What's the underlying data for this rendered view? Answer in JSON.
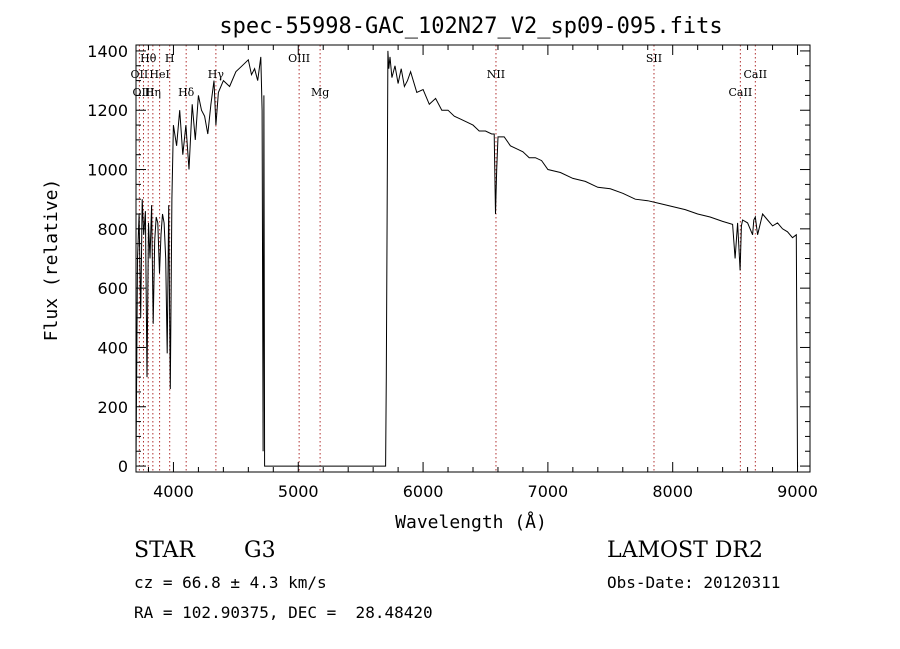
{
  "chart_data": {
    "type": "line",
    "title": "spec-55998-GAC_102N27_V2_sp09-095.fits",
    "xlabel": "Wavelength (Å)",
    "ylabel": "Flux (relative)",
    "xlim": [
      3700,
      9100
    ],
    "ylim": [
      -20,
      1420
    ],
    "xticks": [
      4000,
      5000,
      6000,
      7000,
      8000,
      9000
    ],
    "xtick_labels": [
      "4000",
      "5000",
      "6000",
      "7000",
      "8000",
      "9000"
    ],
    "yticks": [
      0,
      200,
      400,
      600,
      800,
      1000,
      1200,
      1400
    ],
    "ytick_labels": [
      "0",
      "200",
      "400",
      "600",
      "800",
      "1000",
      "1200",
      "1400"
    ],
    "grid": false,
    "legend": "none",
    "line_color": "#000000",
    "marker_color": "#b03030",
    "lines": [
      {
        "label": "Hθ",
        "x": 3798,
        "row": 0
      },
      {
        "label": "H",
        "x": 3970,
        "row": 0
      },
      {
        "label": "OII",
        "x": 3727,
        "row": 1
      },
      {
        "label": "HeI",
        "x": 3889,
        "row": 1
      },
      {
        "label": "Hγ",
        "x": 4340,
        "row": 1
      },
      {
        "label": "OIII",
        "x": 5007,
        "row": 0
      },
      {
        "label": "Mg",
        "x": 5175,
        "row": 2
      },
      {
        "label": "NII",
        "x": 6584,
        "row": 1
      },
      {
        "label": "SII",
        "x": 7850,
        "row": 0
      },
      {
        "label": "CaII",
        "x": 8542,
        "row": 2
      },
      {
        "label": "CaII",
        "x": 8662,
        "row": 1
      },
      {
        "label": "OIII",
        "x": 3760,
        "row": 2
      },
      {
        "label": "Hη",
        "x": 3835,
        "row": 2
      },
      {
        "label": "Hδ",
        "x": 4102,
        "row": 2
      }
    ],
    "spectrum": {
      "x": [
        3700,
        3712,
        3725,
        3738,
        3750,
        3762,
        3775,
        3788,
        3800,
        3812,
        3825,
        3838,
        3850,
        3862,
        3875,
        3888,
        3900,
        3912,
        3925,
        3938,
        3950,
        3962,
        3975,
        3988,
        4000,
        4025,
        4050,
        4075,
        4100,
        4125,
        4150,
        4175,
        4200,
        4225,
        4250,
        4275,
        4300,
        4325,
        4340,
        4360,
        4400,
        4450,
        4500,
        4550,
        4600,
        4625,
        4650,
        4675,
        4700,
        4710,
        4718,
        4725,
        4730,
        5700,
        5705,
        5712,
        5718,
        5725,
        5735,
        5750,
        5775,
        5800,
        5825,
        5850,
        5875,
        5900,
        5950,
        6000,
        6050,
        6100,
        6150,
        6200,
        6250,
        6300,
        6350,
        6400,
        6450,
        6500,
        6550,
        6570,
        6580,
        6590,
        6600,
        6650,
        6700,
        6750,
        6800,
        6850,
        6900,
        6950,
        7000,
        7100,
        7200,
        7300,
        7400,
        7500,
        7600,
        7700,
        7800,
        7900,
        8000,
        8100,
        8200,
        8300,
        8400,
        8480,
        8500,
        8520,
        8540,
        8550,
        8560,
        8600,
        8640,
        8650,
        8662,
        8680,
        8720,
        8760,
        8800,
        8840,
        8880,
        8920,
        8960,
        8990,
        9000,
        9005
      ],
      "y": [
        0,
        700,
        850,
        500,
        900,
        780,
        860,
        300,
        820,
        700,
        880,
        480,
        760,
        840,
        820,
        650,
        780,
        850,
        820,
        700,
        380,
        880,
        260,
        900,
        1150,
        1080,
        1200,
        1050,
        1150,
        1000,
        1220,
        1100,
        1250,
        1200,
        1180,
        1120,
        1220,
        1300,
        1150,
        1260,
        1300,
        1280,
        1330,
        1350,
        1370,
        1320,
        1340,
        1300,
        1380,
        1200,
        50,
        1250,
        0,
        0,
        300,
        830,
        1400,
        1340,
        1380,
        1310,
        1350,
        1290,
        1340,
        1280,
        1300,
        1330,
        1260,
        1270,
        1220,
        1240,
        1200,
        1200,
        1180,
        1170,
        1160,
        1150,
        1130,
        1130,
        1120,
        1120,
        850,
        1000,
        1110,
        1110,
        1080,
        1070,
        1060,
        1040,
        1040,
        1030,
        1000,
        990,
        970,
        960,
        940,
        935,
        920,
        900,
        895,
        885,
        875,
        865,
        850,
        840,
        825,
        815,
        700,
        820,
        660,
        810,
        830,
        820,
        780,
        830,
        840,
        780,
        850,
        830,
        810,
        820,
        800,
        790,
        770,
        780,
        0,
        0
      ]
    }
  },
  "footer": {
    "object_class": "STAR",
    "subclass": "G3",
    "redshift": "cz = 66.8 ± 4.3 km/s",
    "coords": "RA = 102.90375, DEC =  28.48420",
    "survey": "LAMOST DR2",
    "obs_date": "Obs-Date: 20120311"
  }
}
